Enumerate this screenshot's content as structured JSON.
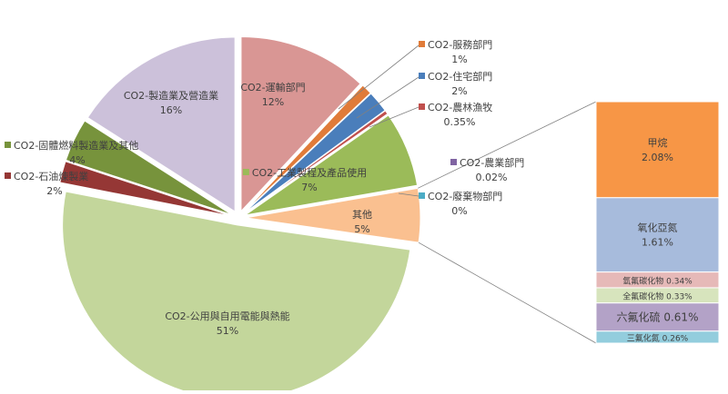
{
  "chart_data": {
    "type": "pie",
    "subtype": "bar-of-pie",
    "slices": [
      {
        "label": "CO2-運輸部門",
        "value_label": "12%",
        "value": 12,
        "color": "#d99694"
      },
      {
        "label": "CO2-服務部門",
        "value_label": "1%",
        "value": 1,
        "color": "#e07b39"
      },
      {
        "label": "CO2-住宅部門",
        "value_label": "2%",
        "value": 2,
        "color": "#4a7ebb"
      },
      {
        "label": "CO2-農林漁牧",
        "value_label": "0.35%",
        "value": 0.35,
        "color": "#c0504d"
      },
      {
        "label": "CO2-工業製程及產品使用",
        "value_label": "7%",
        "value": 7,
        "color": "#9bbb59"
      },
      {
        "label": "CO2-農業部門",
        "value_label": "0.02%",
        "value": 0.02,
        "color": "#8064a2"
      },
      {
        "label": "CO2-廢棄物部門",
        "value_label": "0%",
        "value": 0,
        "color": "#4bacc6"
      },
      {
        "label": "其他",
        "value_label": "5%",
        "value": 5,
        "color": "#fac090"
      },
      {
        "label": "CO2-公用與自用電能與熱能",
        "value_label": "51%",
        "value": 51,
        "color": "#c3d69b"
      },
      {
        "label": "CO2-石油煉製業",
        "value_label": "2%",
        "value": 2,
        "color": "#953735"
      },
      {
        "label": "CO2-固體燃料製造業及其他",
        "value_label": "4%",
        "value": 4,
        "color": "#77933c"
      },
      {
        "label": "CO2-製造業及營造業",
        "value_label": "16%",
        "value": 16,
        "color": "#ccc1da"
      }
    ],
    "breakdown_of": "其他",
    "bar": [
      {
        "label": "甲烷",
        "value_label": "2.08%",
        "value": 2.08,
        "color": "#f79646"
      },
      {
        "label": "氧化亞氮",
        "value_label": "1.61%",
        "value": 1.61,
        "color": "#a7bbdc"
      },
      {
        "label": "氫氟碳化物",
        "value_label": "0.34%",
        "value": 0.34,
        "color": "#e6b9b8"
      },
      {
        "label": "全氟碳化物",
        "value_label": "0.33%",
        "value": 0.33,
        "color": "#d7e4bd"
      },
      {
        "label": "六氟化硫",
        "value_label": "0.61%",
        "value": 0.61,
        "color": "#b3a2c7"
      },
      {
        "label": "三氟化氮",
        "value_label": "0.26%",
        "value": 0.26,
        "color": "#93cddd"
      }
    ]
  }
}
